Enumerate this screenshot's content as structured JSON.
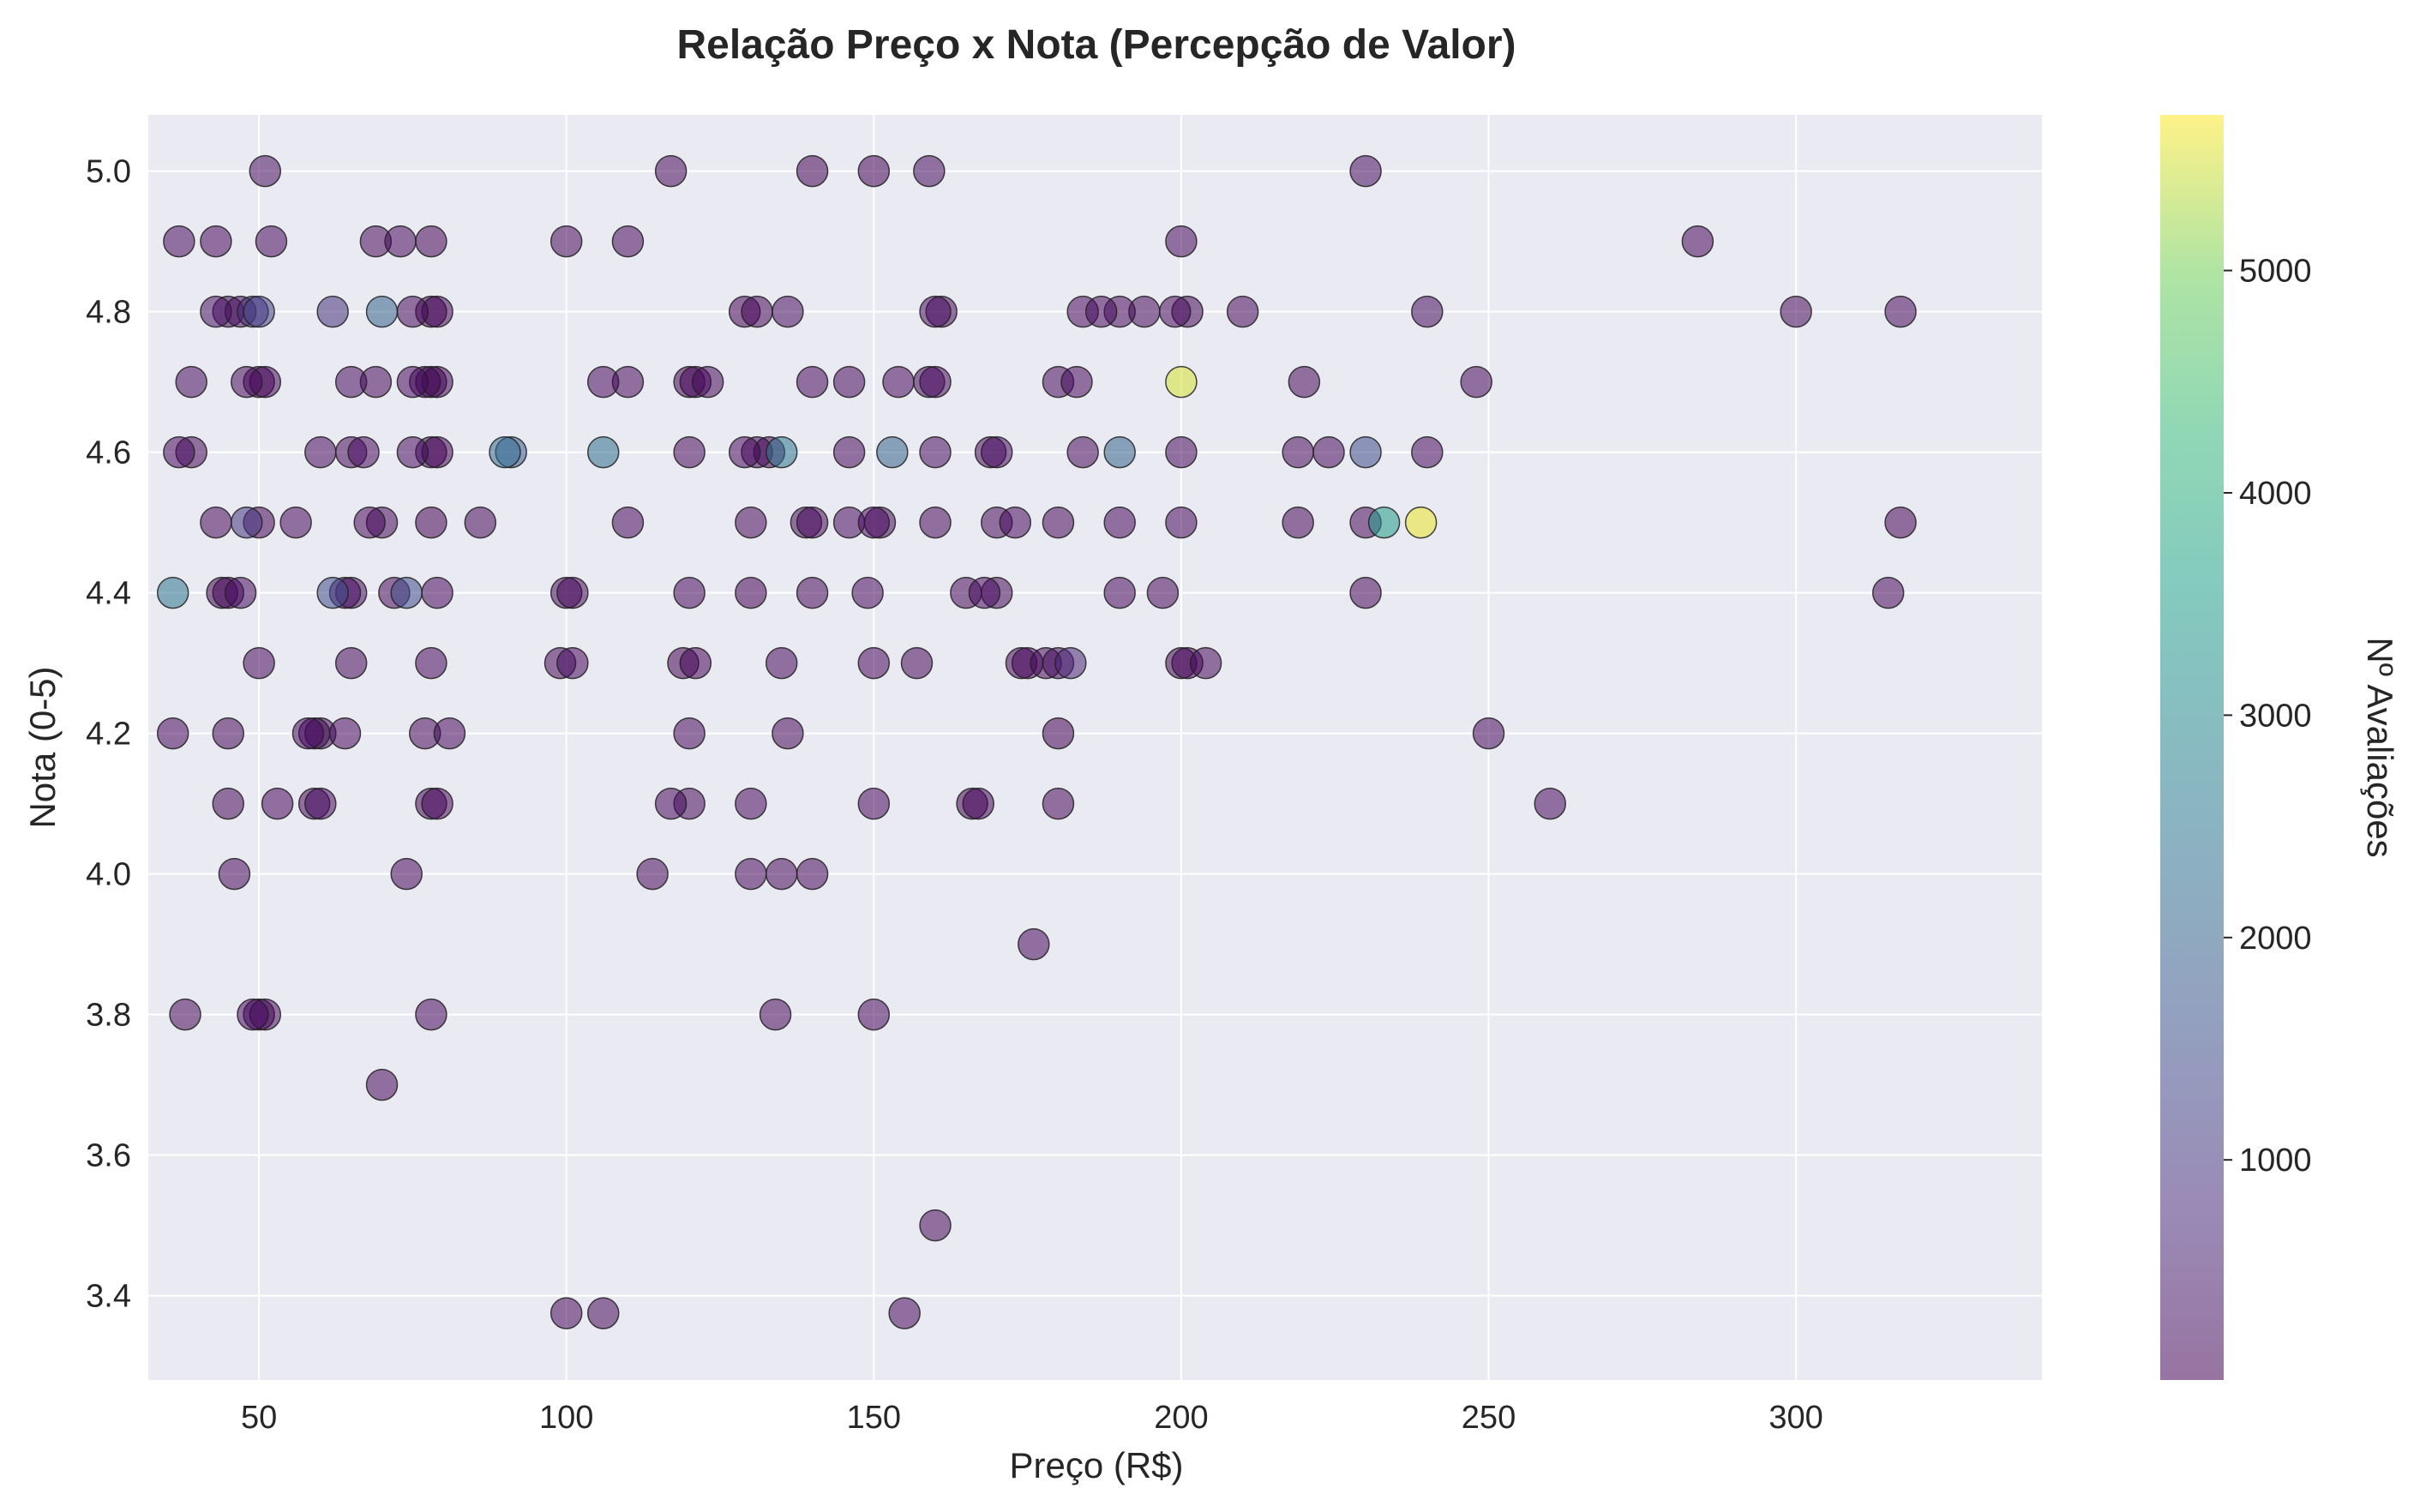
{
  "chart_data": {
    "type": "scatter",
    "title": "Relação Preço x Nota (Percepção de Valor)",
    "xlabel": "Preço (R$)",
    "ylabel": "Nota (0-5)",
    "colorbar_label": "Nº Avaliações",
    "xlim": [
      32,
      340
    ],
    "ylim": [
      3.28,
      5.08
    ],
    "x_ticks": [
      50,
      100,
      150,
      200,
      250,
      300
    ],
    "y_ticks": [
      3.4,
      3.6,
      3.8,
      4.0,
      4.2,
      4.4,
      4.6,
      4.8,
      5.0
    ],
    "colorbar_ticks": [
      1000,
      2000,
      3000,
      4000,
      5000
    ],
    "colorbar_range": [
      10,
      5700
    ],
    "grid": true,
    "colormap": "viridis",
    "marker_alpha": 0.55,
    "colors": {
      "background": "#eaeaf2",
      "grid": "#ffffff",
      "marker_edge": "#222222"
    },
    "points": [
      {
        "x": 37,
        "y": 4.9,
        "c": 200
      },
      {
        "x": 43,
        "y": 4.9,
        "c": 180
      },
      {
        "x": 51,
        "y": 5.0,
        "c": 220
      },
      {
        "x": 52,
        "y": 4.9,
        "c": 160
      },
      {
        "x": 69,
        "y": 4.9,
        "c": 150
      },
      {
        "x": 73,
        "y": 4.9,
        "c": 170
      },
      {
        "x": 78,
        "y": 4.9,
        "c": 40
      },
      {
        "x": 100,
        "y": 4.9,
        "c": 120
      },
      {
        "x": 110,
        "y": 4.9,
        "c": 140
      },
      {
        "x": 117,
        "y": 5.0,
        "c": 160
      },
      {
        "x": 140,
        "y": 5.0,
        "c": 30
      },
      {
        "x": 150,
        "y": 5.0,
        "c": 30
      },
      {
        "x": 159,
        "y": 5.0,
        "c": 200
      },
      {
        "x": 200,
        "y": 4.9,
        "c": 170
      },
      {
        "x": 230,
        "y": 5.0,
        "c": 200
      },
      {
        "x": 284,
        "y": 4.9,
        "c": 100
      },
      {
        "x": 43,
        "y": 4.8,
        "c": 300
      },
      {
        "x": 45,
        "y": 4.8,
        "c": 80
      },
      {
        "x": 47,
        "y": 4.8,
        "c": 200
      },
      {
        "x": 49,
        "y": 4.8,
        "c": 900
      },
      {
        "x": 50,
        "y": 4.8,
        "c": 1200
      },
      {
        "x": 62,
        "y": 4.8,
        "c": 900
      },
      {
        "x": 70,
        "y": 4.8,
        "c": 2000
      },
      {
        "x": 75,
        "y": 4.8,
        "c": 150
      },
      {
        "x": 78,
        "y": 4.8,
        "c": 10
      },
      {
        "x": 79,
        "y": 4.8,
        "c": 40
      },
      {
        "x": 129,
        "y": 4.8,
        "c": 30
      },
      {
        "x": 131,
        "y": 4.8,
        "c": 80
      },
      {
        "x": 136,
        "y": 4.8,
        "c": 200
      },
      {
        "x": 160,
        "y": 4.8,
        "c": 200
      },
      {
        "x": 161,
        "y": 4.8,
        "c": 120
      },
      {
        "x": 184,
        "y": 4.8,
        "c": 160
      },
      {
        "x": 187,
        "y": 4.8,
        "c": 170
      },
      {
        "x": 190,
        "y": 4.8,
        "c": 140
      },
      {
        "x": 194,
        "y": 4.8,
        "c": 130
      },
      {
        "x": 199,
        "y": 4.8,
        "c": 150
      },
      {
        "x": 201,
        "y": 4.8,
        "c": 80
      },
      {
        "x": 210,
        "y": 4.8,
        "c": 150
      },
      {
        "x": 240,
        "y": 4.8,
        "c": 200
      },
      {
        "x": 300,
        "y": 4.8,
        "c": 150
      },
      {
        "x": 317,
        "y": 4.8,
        "c": 160
      },
      {
        "x": 39,
        "y": 4.7,
        "c": 200
      },
      {
        "x": 48,
        "y": 4.7,
        "c": 150
      },
      {
        "x": 50,
        "y": 4.7,
        "c": 40
      },
      {
        "x": 51,
        "y": 4.7,
        "c": 120
      },
      {
        "x": 65,
        "y": 4.7,
        "c": 200
      },
      {
        "x": 69,
        "y": 4.7,
        "c": 150
      },
      {
        "x": 75,
        "y": 4.7,
        "c": 160
      },
      {
        "x": 77,
        "y": 4.7,
        "c": 80
      },
      {
        "x": 78,
        "y": 4.7,
        "c": 30
      },
      {
        "x": 79,
        "y": 4.7,
        "c": 60
      },
      {
        "x": 106,
        "y": 4.7,
        "c": 160
      },
      {
        "x": 110,
        "y": 4.7,
        "c": 150
      },
      {
        "x": 120,
        "y": 4.7,
        "c": 30
      },
      {
        "x": 121,
        "y": 4.7,
        "c": 80
      },
      {
        "x": 123,
        "y": 4.7,
        "c": 150
      },
      {
        "x": 140,
        "y": 4.7,
        "c": 160
      },
      {
        "x": 146,
        "y": 4.7,
        "c": 170
      },
      {
        "x": 154,
        "y": 4.7,
        "c": 160
      },
      {
        "x": 159,
        "y": 4.7,
        "c": 100
      },
      {
        "x": 160,
        "y": 4.7,
        "c": 180
      },
      {
        "x": 180,
        "y": 4.7,
        "c": 160
      },
      {
        "x": 183,
        "y": 4.7,
        "c": 170
      },
      {
        "x": 200,
        "y": 4.7,
        "c": 5500
      },
      {
        "x": 220,
        "y": 4.7,
        "c": 150
      },
      {
        "x": 248,
        "y": 4.7,
        "c": 170
      },
      {
        "x": 37,
        "y": 4.6,
        "c": 170
      },
      {
        "x": 39,
        "y": 4.6,
        "c": 150
      },
      {
        "x": 60,
        "y": 4.6,
        "c": 180
      },
      {
        "x": 65,
        "y": 4.6,
        "c": 150
      },
      {
        "x": 67,
        "y": 4.6,
        "c": 170
      },
      {
        "x": 75,
        "y": 4.6,
        "c": 200
      },
      {
        "x": 78,
        "y": 4.6,
        "c": 30
      },
      {
        "x": 79,
        "y": 4.6,
        "c": 60
      },
      {
        "x": 90,
        "y": 4.6,
        "c": 2200
      },
      {
        "x": 91,
        "y": 4.6,
        "c": 1800
      },
      {
        "x": 106,
        "y": 4.6,
        "c": 2300
      },
      {
        "x": 120,
        "y": 4.6,
        "c": 150
      },
      {
        "x": 129,
        "y": 4.6,
        "c": 150
      },
      {
        "x": 131,
        "y": 4.6,
        "c": 120
      },
      {
        "x": 133,
        "y": 4.6,
        "c": 40
      },
      {
        "x": 135,
        "y": 4.6,
        "c": 2500
      },
      {
        "x": 146,
        "y": 4.6,
        "c": 170
      },
      {
        "x": 153,
        "y": 4.6,
        "c": 2000
      },
      {
        "x": 160,
        "y": 4.6,
        "c": 200
      },
      {
        "x": 169,
        "y": 4.6,
        "c": 150
      },
      {
        "x": 170,
        "y": 4.6,
        "c": 180
      },
      {
        "x": 184,
        "y": 4.6,
        "c": 150
      },
      {
        "x": 190,
        "y": 4.6,
        "c": 2000
      },
      {
        "x": 200,
        "y": 4.6,
        "c": 160
      },
      {
        "x": 219,
        "y": 4.6,
        "c": 150
      },
      {
        "x": 224,
        "y": 4.6,
        "c": 170
      },
      {
        "x": 230,
        "y": 4.6,
        "c": 1500
      },
      {
        "x": 240,
        "y": 4.6,
        "c": 160
      },
      {
        "x": 43,
        "y": 4.5,
        "c": 150
      },
      {
        "x": 48,
        "y": 4.5,
        "c": 1000
      },
      {
        "x": 50,
        "y": 4.5,
        "c": 40
      },
      {
        "x": 56,
        "y": 4.5,
        "c": 160
      },
      {
        "x": 68,
        "y": 4.5,
        "c": 150
      },
      {
        "x": 70,
        "y": 4.5,
        "c": 120
      },
      {
        "x": 78,
        "y": 4.5,
        "c": 30
      },
      {
        "x": 86,
        "y": 4.5,
        "c": 150
      },
      {
        "x": 110,
        "y": 4.5,
        "c": 160
      },
      {
        "x": 130,
        "y": 4.5,
        "c": 150
      },
      {
        "x": 139,
        "y": 4.5,
        "c": 120
      },
      {
        "x": 140,
        "y": 4.5,
        "c": 150
      },
      {
        "x": 146,
        "y": 4.5,
        "c": 160
      },
      {
        "x": 150,
        "y": 4.5,
        "c": 160
      },
      {
        "x": 151,
        "y": 4.5,
        "c": 120
      },
      {
        "x": 160,
        "y": 4.5,
        "c": 150
      },
      {
        "x": 170,
        "y": 4.5,
        "c": 150
      },
      {
        "x": 173,
        "y": 4.5,
        "c": 160
      },
      {
        "x": 180,
        "y": 4.5,
        "c": 150
      },
      {
        "x": 190,
        "y": 4.5,
        "c": 160
      },
      {
        "x": 200,
        "y": 4.5,
        "c": 170
      },
      {
        "x": 219,
        "y": 4.5,
        "c": 150
      },
      {
        "x": 230,
        "y": 4.5,
        "c": 150
      },
      {
        "x": 233,
        "y": 4.5,
        "c": 3500
      },
      {
        "x": 239,
        "y": 4.5,
        "c": 5600
      },
      {
        "x": 317,
        "y": 4.5,
        "c": 40
      },
      {
        "x": 36,
        "y": 4.4,
        "c": 2500
      },
      {
        "x": 44,
        "y": 4.4,
        "c": 30
      },
      {
        "x": 45,
        "y": 4.4,
        "c": 80
      },
      {
        "x": 47,
        "y": 4.4,
        "c": 200
      },
      {
        "x": 62,
        "y": 4.4,
        "c": 1500
      },
      {
        "x": 64,
        "y": 4.4,
        "c": 200
      },
      {
        "x": 65,
        "y": 4.4,
        "c": 150
      },
      {
        "x": 72,
        "y": 4.4,
        "c": 160
      },
      {
        "x": 74,
        "y": 4.4,
        "c": 1500
      },
      {
        "x": 79,
        "y": 4.4,
        "c": 170
      },
      {
        "x": 100,
        "y": 4.4,
        "c": 120
      },
      {
        "x": 101,
        "y": 4.4,
        "c": 150
      },
      {
        "x": 120,
        "y": 4.4,
        "c": 160
      },
      {
        "x": 130,
        "y": 4.4,
        "c": 10
      },
      {
        "x": 140,
        "y": 4.4,
        "c": 150
      },
      {
        "x": 149,
        "y": 4.4,
        "c": 170
      },
      {
        "x": 165,
        "y": 4.4,
        "c": 150
      },
      {
        "x": 168,
        "y": 4.4,
        "c": 160
      },
      {
        "x": 170,
        "y": 4.4,
        "c": 150
      },
      {
        "x": 190,
        "y": 4.4,
        "c": 160
      },
      {
        "x": 197,
        "y": 4.4,
        "c": 150
      },
      {
        "x": 230,
        "y": 4.4,
        "c": 150
      },
      {
        "x": 315,
        "y": 4.4,
        "c": 160
      },
      {
        "x": 50,
        "y": 4.3,
        "c": 170
      },
      {
        "x": 65,
        "y": 4.3,
        "c": 150
      },
      {
        "x": 78,
        "y": 4.3,
        "c": 160
      },
      {
        "x": 99,
        "y": 4.3,
        "c": 150
      },
      {
        "x": 101,
        "y": 4.3,
        "c": 160
      },
      {
        "x": 119,
        "y": 4.3,
        "c": 30
      },
      {
        "x": 121,
        "y": 4.3,
        "c": 60
      },
      {
        "x": 135,
        "y": 4.3,
        "c": 170
      },
      {
        "x": 150,
        "y": 4.3,
        "c": 160
      },
      {
        "x": 157,
        "y": 4.3,
        "c": 150
      },
      {
        "x": 174,
        "y": 4.3,
        "c": 60
      },
      {
        "x": 175,
        "y": 4.3,
        "c": 100
      },
      {
        "x": 178,
        "y": 4.3,
        "c": 150
      },
      {
        "x": 180,
        "y": 4.3,
        "c": 160
      },
      {
        "x": 182,
        "y": 4.3,
        "c": 700
      },
      {
        "x": 200,
        "y": 4.3,
        "c": 30
      },
      {
        "x": 201,
        "y": 4.3,
        "c": 80
      },
      {
        "x": 204,
        "y": 4.3,
        "c": 150
      },
      {
        "x": 36,
        "y": 4.2,
        "c": 160
      },
      {
        "x": 45,
        "y": 4.2,
        "c": 150
      },
      {
        "x": 58,
        "y": 4.2,
        "c": 170
      },
      {
        "x": 59,
        "y": 4.2,
        "c": 150
      },
      {
        "x": 60,
        "y": 4.2,
        "c": 120
      },
      {
        "x": 64,
        "y": 4.2,
        "c": 160
      },
      {
        "x": 77,
        "y": 4.2,
        "c": 150
      },
      {
        "x": 81,
        "y": 4.2,
        "c": 170
      },
      {
        "x": 120,
        "y": 4.2,
        "c": 160
      },
      {
        "x": 136,
        "y": 4.2,
        "c": 150
      },
      {
        "x": 180,
        "y": 4.2,
        "c": 10
      },
      {
        "x": 250,
        "y": 4.2,
        "c": 160
      },
      {
        "x": 45,
        "y": 4.1,
        "c": 150
      },
      {
        "x": 53,
        "y": 4.1,
        "c": 160
      },
      {
        "x": 59,
        "y": 4.1,
        "c": 150
      },
      {
        "x": 60,
        "y": 4.1,
        "c": 170
      },
      {
        "x": 78,
        "y": 4.1,
        "c": 50
      },
      {
        "x": 79,
        "y": 4.1,
        "c": 120
      },
      {
        "x": 117,
        "y": 4.1,
        "c": 160
      },
      {
        "x": 120,
        "y": 4.1,
        "c": 150
      },
      {
        "x": 130,
        "y": 4.1,
        "c": 160
      },
      {
        "x": 150,
        "y": 4.1,
        "c": 170
      },
      {
        "x": 166,
        "y": 4.1,
        "c": 30
      },
      {
        "x": 167,
        "y": 4.1,
        "c": 80
      },
      {
        "x": 180,
        "y": 4.1,
        "c": 150
      },
      {
        "x": 260,
        "y": 4.1,
        "c": 160
      },
      {
        "x": 46,
        "y": 4.0,
        "c": 170
      },
      {
        "x": 74,
        "y": 4.0,
        "c": 160
      },
      {
        "x": 114,
        "y": 4.0,
        "c": 150
      },
      {
        "x": 130,
        "y": 4.0,
        "c": 160
      },
      {
        "x": 135,
        "y": 4.0,
        "c": 150
      },
      {
        "x": 140,
        "y": 4.0,
        "c": 170
      },
      {
        "x": 176,
        "y": 3.9,
        "c": 160
      },
      {
        "x": 38,
        "y": 3.8,
        "c": 150
      },
      {
        "x": 49,
        "y": 3.8,
        "c": 160
      },
      {
        "x": 50,
        "y": 3.8,
        "c": 40
      },
      {
        "x": 51,
        "y": 3.8,
        "c": 120
      },
      {
        "x": 78,
        "y": 3.8,
        "c": 170
      },
      {
        "x": 134,
        "y": 3.8,
        "c": 150
      },
      {
        "x": 150,
        "y": 3.8,
        "c": 160
      },
      {
        "x": 70,
        "y": 3.7,
        "c": 170
      },
      {
        "x": 160,
        "y": 3.5,
        "c": 150
      },
      {
        "x": 100,
        "y": 3.375,
        "c": 160
      },
      {
        "x": 106,
        "y": 3.375,
        "c": 150
      },
      {
        "x": 155,
        "y": 3.375,
        "c": 170
      }
    ]
  }
}
